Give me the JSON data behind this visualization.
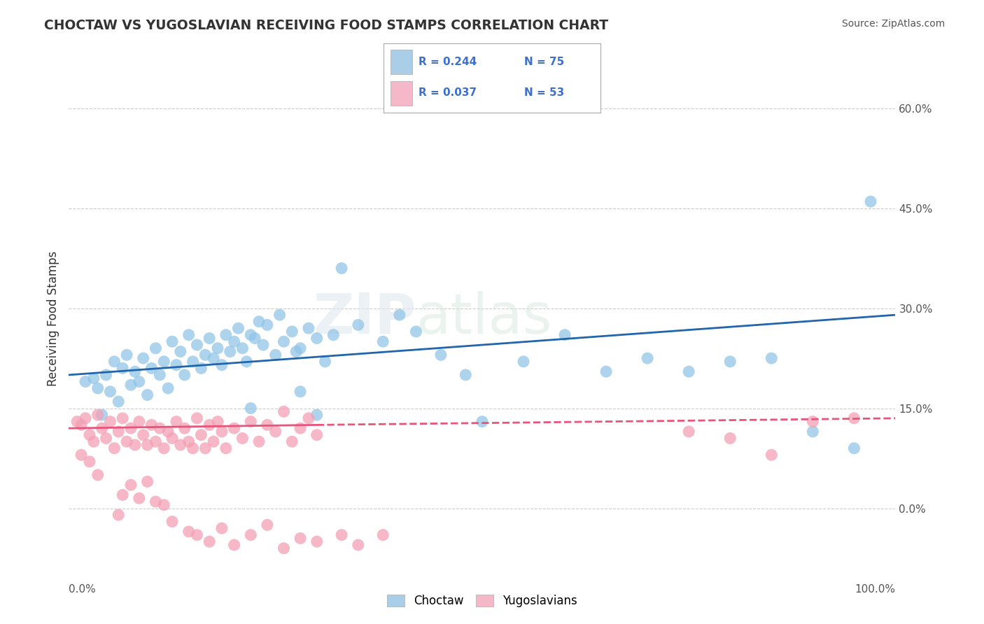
{
  "title": "CHOCTAW VS YUGOSLAVIAN RECEIVING FOOD STAMPS CORRELATION CHART",
  "source": "Source: ZipAtlas.com",
  "ylabel": "Receiving Food Stamps",
  "xlim": [
    0,
    100
  ],
  "ylim": [
    -8,
    65
  ],
  "ytick_labels": [
    "0.0%",
    "15.0%",
    "30.0%",
    "45.0%",
    "60.0%"
  ],
  "ytick_values": [
    0,
    15,
    30,
    45,
    60
  ],
  "ygrid_values": [
    0,
    15,
    30,
    45,
    60
  ],
  "watermark_zip": "ZIP",
  "watermark_atlas": "atlas",
  "choctaw_color": "#92c5e8",
  "yugoslavian_color": "#f4a0b5",
  "choctaw_line_color": "#2166ac",
  "yugoslavian_line_color": "#e8547a",
  "choctaw_legend_color": "#aacde8",
  "yugoslavian_legend_color": "#f4b8c8",
  "legend_text_color": "#3d6fcc",
  "background_color": "#ffffff",
  "grid_color": "#cccccc",
  "title_color": "#333333",
  "source_color": "#555555",
  "choctaw_points": [
    [
      2.0,
      19.0
    ],
    [
      3.0,
      19.5
    ],
    [
      3.5,
      18.0
    ],
    [
      4.0,
      14.0
    ],
    [
      4.5,
      20.0
    ],
    [
      5.0,
      17.5
    ],
    [
      5.5,
      22.0
    ],
    [
      6.0,
      16.0
    ],
    [
      6.5,
      21.0
    ],
    [
      7.0,
      23.0
    ],
    [
      7.5,
      18.5
    ],
    [
      8.0,
      20.5
    ],
    [
      8.5,
      19.0
    ],
    [
      9.0,
      22.5
    ],
    [
      9.5,
      17.0
    ],
    [
      10.0,
      21.0
    ],
    [
      10.5,
      24.0
    ],
    [
      11.0,
      20.0
    ],
    [
      11.5,
      22.0
    ],
    [
      12.0,
      18.0
    ],
    [
      12.5,
      25.0
    ],
    [
      13.0,
      21.5
    ],
    [
      13.5,
      23.5
    ],
    [
      14.0,
      20.0
    ],
    [
      14.5,
      26.0
    ],
    [
      15.0,
      22.0
    ],
    [
      15.5,
      24.5
    ],
    [
      16.0,
      21.0
    ],
    [
      16.5,
      23.0
    ],
    [
      17.0,
      25.5
    ],
    [
      17.5,
      22.5
    ],
    [
      18.0,
      24.0
    ],
    [
      18.5,
      21.5
    ],
    [
      19.0,
      26.0
    ],
    [
      19.5,
      23.5
    ],
    [
      20.0,
      25.0
    ],
    [
      20.5,
      27.0
    ],
    [
      21.0,
      24.0
    ],
    [
      21.5,
      22.0
    ],
    [
      22.0,
      26.0
    ],
    [
      22.5,
      25.5
    ],
    [
      23.0,
      28.0
    ],
    [
      23.5,
      24.5
    ],
    [
      24.0,
      27.5
    ],
    [
      25.0,
      23.0
    ],
    [
      25.5,
      29.0
    ],
    [
      26.0,
      25.0
    ],
    [
      27.0,
      26.5
    ],
    [
      27.5,
      23.5
    ],
    [
      28.0,
      24.0
    ],
    [
      29.0,
      27.0
    ],
    [
      30.0,
      25.5
    ],
    [
      31.0,
      22.0
    ],
    [
      32.0,
      26.0
    ],
    [
      33.0,
      36.0
    ],
    [
      35.0,
      27.5
    ],
    [
      38.0,
      25.0
    ],
    [
      40.0,
      29.0
    ],
    [
      42.0,
      26.5
    ],
    [
      45.0,
      23.0
    ],
    [
      48.0,
      20.0
    ],
    [
      50.0,
      13.0
    ],
    [
      55.0,
      22.0
    ],
    [
      60.0,
      26.0
    ],
    [
      65.0,
      20.5
    ],
    [
      70.0,
      22.5
    ],
    [
      75.0,
      20.5
    ],
    [
      80.0,
      22.0
    ],
    [
      85.0,
      22.5
    ],
    [
      90.0,
      11.5
    ],
    [
      95.0,
      9.0
    ],
    [
      97.0,
      46.0
    ],
    [
      30.0,
      14.0
    ],
    [
      28.0,
      17.5
    ],
    [
      22.0,
      15.0
    ]
  ],
  "yugoslavian_points": [
    [
      1.0,
      13.0
    ],
    [
      1.5,
      12.5
    ],
    [
      2.0,
      13.5
    ],
    [
      2.5,
      11.0
    ],
    [
      3.0,
      10.0
    ],
    [
      3.5,
      14.0
    ],
    [
      4.0,
      12.0
    ],
    [
      4.5,
      10.5
    ],
    [
      5.0,
      13.0
    ],
    [
      5.5,
      9.0
    ],
    [
      6.0,
      11.5
    ],
    [
      6.5,
      13.5
    ],
    [
      7.0,
      10.0
    ],
    [
      7.5,
      12.0
    ],
    [
      8.0,
      9.5
    ],
    [
      8.5,
      13.0
    ],
    [
      9.0,
      11.0
    ],
    [
      9.5,
      9.5
    ],
    [
      10.0,
      12.5
    ],
    [
      10.5,
      10.0
    ],
    [
      11.0,
      12.0
    ],
    [
      11.5,
      9.0
    ],
    [
      12.0,
      11.5
    ],
    [
      12.5,
      10.5
    ],
    [
      13.0,
      13.0
    ],
    [
      13.5,
      9.5
    ],
    [
      14.0,
      12.0
    ],
    [
      14.5,
      10.0
    ],
    [
      15.0,
      9.0
    ],
    [
      15.5,
      13.5
    ],
    [
      16.0,
      11.0
    ],
    [
      16.5,
      9.0
    ],
    [
      17.0,
      12.5
    ],
    [
      17.5,
      10.0
    ],
    [
      18.0,
      13.0
    ],
    [
      18.5,
      11.5
    ],
    [
      19.0,
      9.0
    ],
    [
      20.0,
      12.0
    ],
    [
      21.0,
      10.5
    ],
    [
      22.0,
      13.0
    ],
    [
      23.0,
      10.0
    ],
    [
      24.0,
      12.5
    ],
    [
      25.0,
      11.5
    ],
    [
      26.0,
      14.5
    ],
    [
      27.0,
      10.0
    ],
    [
      28.0,
      12.0
    ],
    [
      29.0,
      13.5
    ],
    [
      30.0,
      11.0
    ],
    [
      75.0,
      11.5
    ],
    [
      80.0,
      10.5
    ],
    [
      85.0,
      8.0
    ],
    [
      90.0,
      13.0
    ],
    [
      95.0,
      13.5
    ],
    [
      1.5,
      8.0
    ],
    [
      2.5,
      7.0
    ],
    [
      3.5,
      5.0
    ],
    [
      6.0,
      -1.0
    ],
    [
      6.5,
      2.0
    ],
    [
      7.5,
      3.5
    ],
    [
      8.5,
      1.5
    ],
    [
      9.5,
      4.0
    ],
    [
      10.5,
      1.0
    ],
    [
      11.5,
      0.5
    ],
    [
      12.5,
      -2.0
    ],
    [
      14.5,
      -3.5
    ],
    [
      15.5,
      -4.0
    ],
    [
      17.0,
      -5.0
    ],
    [
      18.5,
      -3.0
    ],
    [
      20.0,
      -5.5
    ],
    [
      22.0,
      -4.0
    ],
    [
      24.0,
      -2.5
    ],
    [
      26.0,
      -6.0
    ],
    [
      28.0,
      -4.5
    ],
    [
      30.0,
      -5.0
    ],
    [
      33.0,
      -4.0
    ],
    [
      35.0,
      -5.5
    ],
    [
      38.0,
      -4.0
    ]
  ]
}
